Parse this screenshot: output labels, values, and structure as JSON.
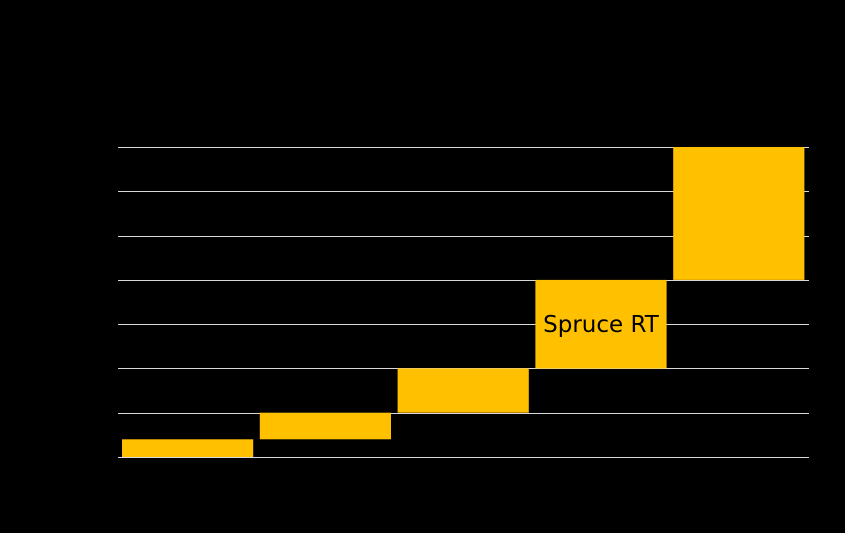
{
  "chart_data": {
    "type": "bar",
    "subtype": "waterfall",
    "title": "",
    "xlabel": "",
    "ylabel": "",
    "ylim": [
      0,
      7
    ],
    "grid": true,
    "legend": "none",
    "bars": [
      {
        "start": 0.0,
        "end": 0.4
      },
      {
        "start": 0.4,
        "end": 1.0
      },
      {
        "start": 1.0,
        "end": 2.0
      },
      {
        "start": 2.0,
        "end": 4.0,
        "label": "Spruce RT"
      },
      {
        "start": 4.0,
        "end": 7.0
      }
    ],
    "colors": {
      "background": "#000000",
      "bar": "#ffc000",
      "grid": "#d9d9d9",
      "label": "#000000"
    }
  }
}
